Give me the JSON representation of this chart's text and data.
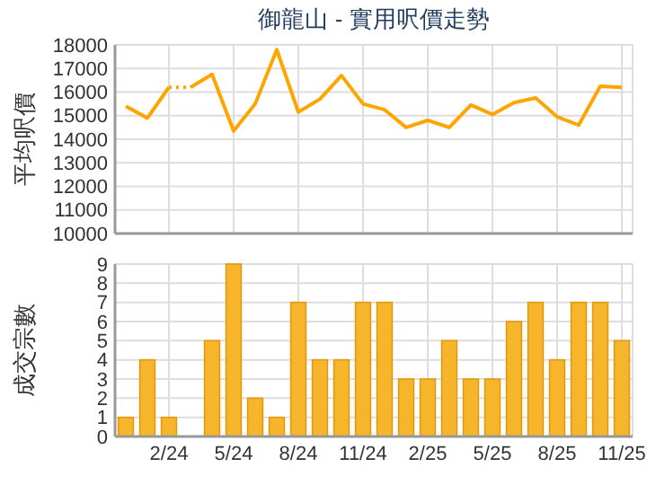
{
  "chart_data": [
    {
      "type": "line",
      "title": "御龍山 - 實用呎價走勢",
      "ylabel": "平均呎價",
      "series": [
        {
          "color": "#ffa500",
          "line_style": "solid",
          "values": [
            15400,
            14900,
            16200,
            null,
            null,
            null,
            null,
            null,
            null,
            null,
            null,
            null,
            null,
            null,
            null,
            null,
            null,
            null,
            null,
            null,
            null,
            null,
            null,
            null
          ]
        },
        {
          "color": "#ffa500",
          "line_style": "dotted",
          "values": [
            null,
            null,
            16200,
            16200,
            null,
            null,
            null,
            null,
            null,
            null,
            null,
            null,
            null,
            null,
            null,
            null,
            null,
            null,
            null,
            null,
            null,
            null,
            null,
            null
          ]
        },
        {
          "color": "#ffa500",
          "line_style": "solid",
          "values": [
            null,
            null,
            null,
            16200,
            16750,
            14350,
            15500,
            17800,
            15150,
            15700,
            16700,
            15500,
            15250,
            14500,
            14800,
            14500,
            15450,
            15050,
            15550,
            15750,
            14950,
            14600,
            16250,
            16200
          ]
        }
      ],
      "ylim": [
        10000,
        18000
      ],
      "yticks": [
        10000,
        11000,
        12000,
        13000,
        14000,
        15000,
        16000,
        17000,
        18000
      ],
      "grid": true,
      "tick_labels": "y"
    },
    {
      "type": "bar",
      "ylabel": "成交宗數",
      "categories": [
        null,
        null,
        "2/24",
        null,
        null,
        "5/24",
        null,
        null,
        "8/24",
        null,
        null,
        "11/24",
        null,
        null,
        "2/25",
        null,
        null,
        "5/25",
        null,
        null,
        "8/25",
        null,
        null,
        "11/25"
      ],
      "series": [
        {
          "color": "#f7b52c",
          "values": [
            1,
            4,
            1,
            0,
            5,
            9,
            2,
            1,
            7,
            4,
            4,
            7,
            7,
            3,
            3,
            5,
            3,
            3,
            6,
            7,
            4,
            7,
            7,
            5
          ]
        }
      ],
      "ylim": [
        0,
        9
      ],
      "yticks": [
        0,
        1,
        2,
        3,
        4,
        5,
        6,
        7,
        8,
        9
      ],
      "grid": true
    }
  ]
}
